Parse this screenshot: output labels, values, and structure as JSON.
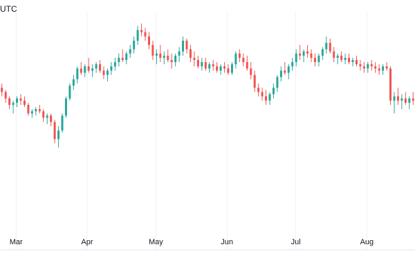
{
  "header": {
    "timezone_label": "UTC"
  },
  "colors": {
    "up": "#26a69a",
    "down": "#ef5350",
    "grid": "#e0e3eb",
    "axis_text": "#131722"
  },
  "chart_data": {
    "type": "candlestick",
    "x_ticks": [
      "Mar",
      "Apr",
      "May",
      "Jun",
      "Jul",
      "Aug"
    ],
    "x_tick_positions_day": [
      29,
      60,
      90,
      121,
      151,
      182
    ],
    "x_range_days": [
      22,
      203
    ],
    "y_range": [
      0,
      100
    ],
    "grid": true,
    "legend": "none",
    "series_ohlc": [
      [
        68,
        70,
        64,
        66
      ],
      [
        66,
        67,
        61,
        63
      ],
      [
        63,
        64,
        58,
        60
      ],
      [
        60,
        62,
        56,
        61
      ],
      [
        61,
        64,
        59,
        63
      ],
      [
        63,
        65,
        60,
        62
      ],
      [
        62,
        64,
        59,
        60
      ],
      [
        60,
        61,
        55,
        56
      ],
      [
        56,
        58,
        54,
        57
      ],
      [
        57,
        59,
        55,
        58
      ],
      [
        58,
        60,
        56,
        57
      ],
      [
        57,
        58,
        52,
        54
      ],
      [
        54,
        56,
        51,
        55
      ],
      [
        55,
        56,
        50,
        52
      ],
      [
        52,
        53,
        42,
        44
      ],
      [
        44,
        50,
        40,
        48
      ],
      [
        48,
        56,
        47,
        55
      ],
      [
        55,
        64,
        54,
        63
      ],
      [
        63,
        70,
        62,
        69
      ],
      [
        69,
        74,
        67,
        72
      ],
      [
        72,
        78,
        70,
        77
      ],
      [
        77,
        80,
        74,
        75
      ],
      [
        75,
        79,
        73,
        78
      ],
      [
        78,
        82,
        75,
        76
      ],
      [
        76,
        79,
        73,
        77
      ],
      [
        77,
        80,
        75,
        79
      ],
      [
        79,
        81,
        75,
        76
      ],
      [
        76,
        78,
        72,
        74
      ],
      [
        74,
        77,
        71,
        76
      ],
      [
        76,
        80,
        74,
        78
      ],
      [
        78,
        82,
        76,
        80
      ],
      [
        80,
        84,
        78,
        82
      ],
      [
        82,
        86,
        80,
        81
      ],
      [
        81,
        85,
        79,
        84
      ],
      [
        84,
        88,
        82,
        86
      ],
      [
        86,
        92,
        84,
        90
      ],
      [
        90,
        97,
        88,
        95
      ],
      [
        95,
        98,
        92,
        94
      ],
      [
        94,
        96,
        90,
        92
      ],
      [
        92,
        94,
        86,
        88
      ],
      [
        88,
        90,
        81,
        83
      ],
      [
        83,
        86,
        79,
        84
      ],
      [
        84,
        88,
        80,
        82
      ],
      [
        82,
        85,
        79,
        83
      ],
      [
        83,
        86,
        80,
        81
      ],
      [
        81,
        84,
        77,
        80
      ],
      [
        80,
        84,
        78,
        83
      ],
      [
        83,
        87,
        80,
        85
      ],
      [
        85,
        92,
        83,
        90
      ],
      [
        90,
        91,
        84,
        86
      ],
      [
        86,
        88,
        80,
        82
      ],
      [
        82,
        85,
        78,
        81
      ],
      [
        81,
        83,
        77,
        78
      ],
      [
        78,
        82,
        76,
        80
      ],
      [
        80,
        82,
        76,
        77
      ],
      [
        77,
        80,
        75,
        79
      ],
      [
        79,
        81,
        76,
        78
      ],
      [
        78,
        80,
        75,
        76
      ],
      [
        76,
        79,
        74,
        78
      ],
      [
        78,
        80,
        75,
        77
      ],
      [
        77,
        79,
        74,
        75
      ],
      [
        75,
        80,
        74,
        79
      ],
      [
        79,
        85,
        77,
        84
      ],
      [
        84,
        86,
        80,
        82
      ],
      [
        82,
        84,
        78,
        80
      ],
      [
        80,
        83,
        76,
        77
      ],
      [
        77,
        80,
        72,
        74
      ],
      [
        74,
        76,
        66,
        68
      ],
      [
        68,
        70,
        64,
        66
      ],
      [
        66,
        68,
        62,
        64
      ],
      [
        64,
        67,
        60,
        62
      ],
      [
        62,
        66,
        60,
        65
      ],
      [
        65,
        70,
        63,
        68
      ],
      [
        68,
        74,
        66,
        73
      ],
      [
        73,
        78,
        71,
        76
      ],
      [
        76,
        80,
        74,
        75
      ],
      [
        75,
        79,
        72,
        78
      ],
      [
        78,
        82,
        76,
        80
      ],
      [
        80,
        86,
        78,
        84
      ],
      [
        84,
        88,
        81,
        83
      ],
      [
        83,
        86,
        80,
        85
      ],
      [
        85,
        88,
        82,
        84
      ],
      [
        84,
        86,
        80,
        82
      ],
      [
        82,
        84,
        78,
        80
      ],
      [
        80,
        84,
        78,
        83
      ],
      [
        83,
        87,
        81,
        86
      ],
      [
        86,
        92,
        84,
        89
      ],
      [
        89,
        91,
        84,
        85
      ],
      [
        85,
        87,
        80,
        82
      ],
      [
        82,
        84,
        79,
        83
      ],
      [
        83,
        85,
        80,
        81
      ],
      [
        81,
        84,
        79,
        82
      ],
      [
        82,
        84,
        79,
        80
      ],
      [
        80,
        82,
        78,
        81
      ],
      [
        81,
        83,
        78,
        79
      ],
      [
        79,
        81,
        76,
        78
      ],
      [
        78,
        80,
        75,
        77
      ],
      [
        77,
        80,
        75,
        79
      ],
      [
        79,
        81,
        76,
        78
      ],
      [
        78,
        80,
        75,
        77
      ],
      [
        77,
        79,
        74,
        76
      ],
      [
        76,
        79,
        74,
        78
      ],
      [
        78,
        80,
        76,
        77
      ],
      [
        77,
        78,
        60,
        62
      ],
      [
        62,
        66,
        56,
        64
      ],
      [
        64,
        68,
        60,
        62
      ],
      [
        62,
        65,
        58,
        63
      ],
      [
        63,
        66,
        60,
        61
      ],
      [
        61,
        64,
        58,
        63
      ],
      [
        63,
        66,
        60,
        62
      ]
    ]
  }
}
